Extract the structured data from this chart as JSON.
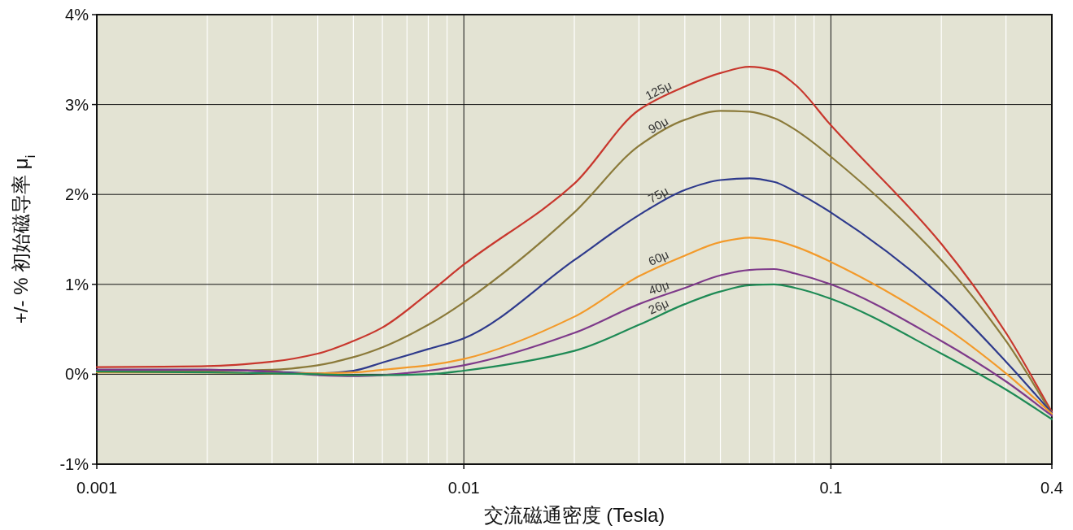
{
  "chart_data": {
    "type": "line",
    "xlabel": "交流磁通密度 (Tesla)",
    "ylabel": "+/- % 初始磁导率 μ$_{i}$",
    "log": "x",
    "grid": true,
    "x": [
      0.001,
      0.002,
      0.003,
      0.004,
      0.005,
      0.006,
      0.008,
      0.01,
      0.02,
      0.03,
      0.04,
      0.05,
      0.06,
      0.07,
      0.08,
      0.1,
      0.2,
      0.3,
      0.4
    ],
    "xlim": [
      0.001,
      0.4
    ],
    "xticks": [
      0.001,
      0.01,
      0.1,
      0.4
    ],
    "ylim": [
      -1,
      4
    ],
    "yticks": [
      {
        "value": -1,
        "label": "-1%"
      },
      {
        "value": 0,
        "label": "0%"
      },
      {
        "value": 1,
        "label": "1%"
      },
      {
        "value": 2,
        "label": "2%"
      },
      {
        "value": 3,
        "label": "3%"
      },
      {
        "value": 4,
        "label": "4%"
      }
    ],
    "series": [
      {
        "name": "125μ",
        "color": "#c8372d",
        "values": [
          0.08,
          0.09,
          0.14,
          0.23,
          0.37,
          0.52,
          0.9,
          1.22,
          2.12,
          2.94,
          3.2,
          3.35,
          3.42,
          3.38,
          3.22,
          2.77,
          1.45,
          0.46,
          -0.42
        ]
      },
      {
        "name": "90μ",
        "color": "#8b7a3a",
        "values": [
          0.04,
          0.04,
          0.05,
          0.1,
          0.19,
          0.3,
          0.55,
          0.8,
          1.8,
          2.54,
          2.83,
          2.93,
          2.92,
          2.85,
          2.72,
          2.42,
          1.27,
          0.37,
          -0.44
        ]
      },
      {
        "name": "75μ",
        "color": "#2e3a8c",
        "values": [
          0.05,
          0.05,
          0.03,
          0.01,
          0.04,
          0.13,
          0.28,
          0.4,
          1.27,
          1.77,
          2.05,
          2.16,
          2.18,
          2.14,
          2.03,
          1.8,
          0.87,
          0.14,
          -0.43
        ]
      },
      {
        "name": "60μ",
        "color": "#f39a2a",
        "values": [
          0.02,
          0.02,
          0.01,
          0.01,
          0.02,
          0.05,
          0.1,
          0.17,
          0.64,
          1.09,
          1.32,
          1.47,
          1.52,
          1.49,
          1.42,
          1.25,
          0.55,
          0.01,
          -0.44
        ]
      },
      {
        "name": "40μ",
        "color": "#7e3a8a",
        "values": [
          0.05,
          0.05,
          0.03,
          -0.01,
          -0.02,
          -0.01,
          0.04,
          0.1,
          0.46,
          0.78,
          0.96,
          1.1,
          1.16,
          1.17,
          1.12,
          1.0,
          0.37,
          -0.08,
          -0.46
        ]
      },
      {
        "name": "26μ",
        "color": "#1e8a55",
        "values": [
          0.03,
          0.02,
          0.01,
          0.0,
          -0.01,
          -0.01,
          0.0,
          0.04,
          0.26,
          0.55,
          0.78,
          0.92,
          0.99,
          1.0,
          0.96,
          0.84,
          0.23,
          -0.17,
          -0.5
        ]
      }
    ]
  }
}
